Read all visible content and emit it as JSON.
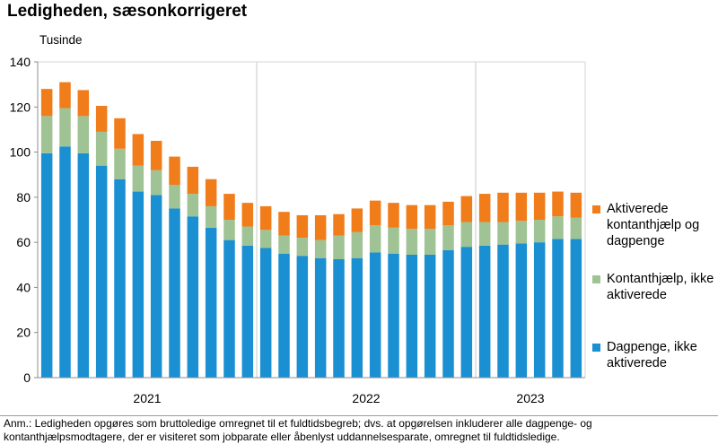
{
  "title": "Ledigheden, sæsonkorrigeret",
  "unit_label": "Tusinde",
  "note": "Anm.: Ledigheden opgøres som bruttoledige omregnet til et fuldtidsbegreb; dvs. at opgørelsen inkluderer alle dagpenge- og kontanthjælpsmodtagere, der er visiteret som jobparate eller åbenlyst uddannelsesparate, omregnet til fuldtidsledige.",
  "legend": [
    {
      "label": "Aktiverede kontanthjælp og dagpenge",
      "color": "#f07c1a"
    },
    {
      "label": "Kontanthjælp, ikke aktiverede",
      "color": "#9fc394"
    },
    {
      "label": "Dagpenge, ikke aktiverede",
      "color": "#1a8fd2"
    }
  ],
  "chart_data": {
    "type": "bar",
    "stacked": true,
    "ylim": [
      0,
      140
    ],
    "yticks": [
      0,
      20,
      40,
      60,
      80,
      100,
      120,
      140
    ],
    "grid": "vertical year separators",
    "legend_position": "right",
    "year_labels": [
      "2021",
      "2022",
      "2023"
    ],
    "year_start_index": [
      0,
      12,
      24
    ],
    "n_months": 30,
    "series": [
      {
        "name": "Dagpenge, ikke aktiverede",
        "color": "#1a8fd2",
        "values": [
          99.5,
          102.5,
          99.5,
          94,
          88,
          82.5,
          81,
          75,
          71.5,
          66.5,
          61,
          58.5,
          57.5,
          55,
          54,
          53,
          52.5,
          53,
          55.5,
          55,
          54.5,
          54.5,
          56.5,
          58,
          58.5,
          59,
          59.5,
          60,
          61.5,
          61.5
        ]
      },
      {
        "name": "Kontanthjælp, ikke aktiverede",
        "color": "#9fc394",
        "values": [
          16.5,
          17,
          16.5,
          15,
          13.5,
          11.5,
          11,
          10.5,
          10,
          9.5,
          9,
          8.5,
          8,
          8,
          8,
          8,
          10.5,
          11.5,
          12,
          11.5,
          11.5,
          11.5,
          11,
          11,
          10.5,
          10,
          10,
          10,
          10,
          9.5
        ]
      },
      {
        "name": "Aktiverede kontanthjælp og dagpenge",
        "color": "#f07c1a",
        "values": [
          12,
          11.5,
          11.5,
          11.5,
          13.5,
          14,
          13,
          12.5,
          12,
          12,
          11.5,
          10.5,
          10.5,
          10.5,
          10,
          11,
          9.5,
          10.5,
          11,
          11,
          10.5,
          10.5,
          10.5,
          11.5,
          12.5,
          13,
          12.5,
          12,
          11,
          11
        ]
      }
    ]
  }
}
